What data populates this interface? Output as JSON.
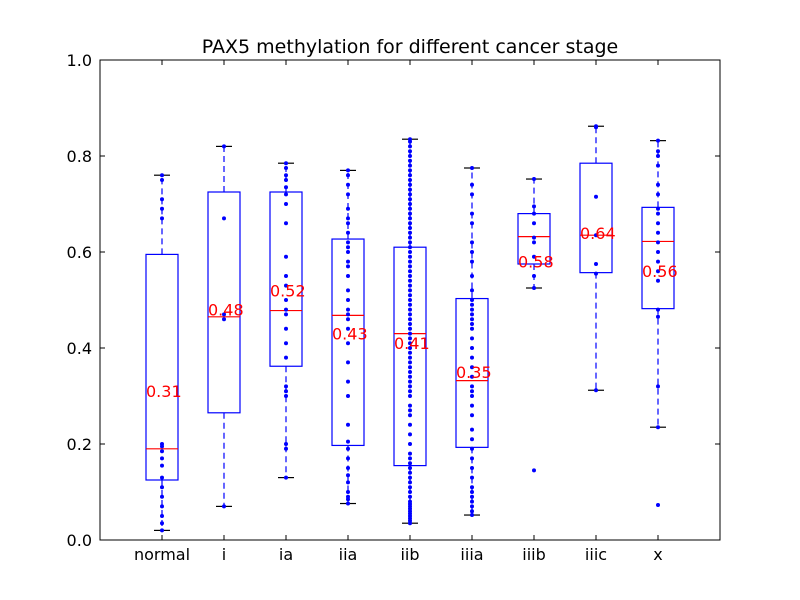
{
  "chart_data": {
    "type": "box",
    "title": "PAX5 methylation for different cancer stage",
    "xlabel": "",
    "ylabel": "",
    "ylim": [
      0.0,
      1.0
    ],
    "yticks": [
      "0.0",
      "0.2",
      "0.4",
      "0.6",
      "0.8",
      "1.0"
    ],
    "categories": [
      "normal",
      "i",
      "ia",
      "iia",
      "iib",
      "iiia",
      "iiib",
      "iiic",
      "x"
    ],
    "boxes": [
      {
        "category": "normal",
        "whisker_low": 0.02,
        "q1": 0.125,
        "median": 0.19,
        "q3": 0.595,
        "whisker_high": 0.76,
        "mean_label": "0.31",
        "points": [
          0.02,
          0.035,
          0.05,
          0.07,
          0.09,
          0.11,
          0.13,
          0.155,
          0.17,
          0.185,
          0.195,
          0.2,
          0.67,
          0.69,
          0.71,
          0.75,
          0.76
        ]
      },
      {
        "category": "i",
        "whisker_low": 0.07,
        "q1": 0.265,
        "median": 0.465,
        "q3": 0.725,
        "whisker_high": 0.82,
        "mean_label": "0.48",
        "points": [
          0.07,
          0.46,
          0.47,
          0.67,
          0.82
        ]
      },
      {
        "category": "ia",
        "whisker_low": 0.13,
        "q1": 0.362,
        "median": 0.478,
        "q3": 0.725,
        "whisker_high": 0.785,
        "mean_label": "0.52",
        "points": [
          0.13,
          0.19,
          0.2,
          0.3,
          0.31,
          0.32,
          0.38,
          0.41,
          0.44,
          0.47,
          0.48,
          0.5,
          0.53,
          0.55,
          0.59,
          0.66,
          0.7,
          0.72,
          0.735,
          0.75,
          0.76,
          0.775,
          0.785
        ]
      },
      {
        "category": "iia",
        "whisker_low": 0.076,
        "q1": 0.197,
        "median": 0.468,
        "q3": 0.627,
        "whisker_high": 0.77,
        "mean_label": "0.43",
        "points": [
          0.076,
          0.085,
          0.09,
          0.1,
          0.12,
          0.135,
          0.15,
          0.17,
          0.19,
          0.205,
          0.24,
          0.3,
          0.33,
          0.37,
          0.41,
          0.44,
          0.46,
          0.47,
          0.48,
          0.5,
          0.52,
          0.55,
          0.57,
          0.58,
          0.6,
          0.61,
          0.62,
          0.64,
          0.66,
          0.67,
          0.69,
          0.72,
          0.74,
          0.76,
          0.77
        ]
      },
      {
        "category": "iib",
        "whisker_low": 0.035,
        "q1": 0.155,
        "median": 0.43,
        "q3": 0.61,
        "whisker_high": 0.835,
        "mean_label": "0.41",
        "points": [
          0.035,
          0.04,
          0.045,
          0.05,
          0.055,
          0.06,
          0.065,
          0.07,
          0.075,
          0.08,
          0.09,
          0.1,
          0.11,
          0.12,
          0.13,
          0.14,
          0.15,
          0.16,
          0.17,
          0.18,
          0.2,
          0.22,
          0.24,
          0.26,
          0.27,
          0.28,
          0.3,
          0.31,
          0.32,
          0.33,
          0.34,
          0.35,
          0.36,
          0.37,
          0.38,
          0.39,
          0.4,
          0.41,
          0.42,
          0.43,
          0.44,
          0.45,
          0.46,
          0.47,
          0.48,
          0.49,
          0.5,
          0.51,
          0.52,
          0.53,
          0.54,
          0.55,
          0.56,
          0.57,
          0.58,
          0.59,
          0.6,
          0.61,
          0.62,
          0.63,
          0.64,
          0.65,
          0.66,
          0.67,
          0.68,
          0.69,
          0.7,
          0.71,
          0.72,
          0.73,
          0.74,
          0.75,
          0.76,
          0.77,
          0.78,
          0.79,
          0.8,
          0.81,
          0.82,
          0.83,
          0.835
        ]
      },
      {
        "category": "iiia",
        "whisker_low": 0.052,
        "q1": 0.193,
        "median": 0.332,
        "q3": 0.503,
        "whisker_high": 0.775,
        "mean_label": "0.35",
        "points": [
          0.052,
          0.06,
          0.07,
          0.08,
          0.09,
          0.1,
          0.11,
          0.13,
          0.15,
          0.17,
          0.19,
          0.21,
          0.23,
          0.26,
          0.28,
          0.3,
          0.31,
          0.32,
          0.34,
          0.36,
          0.38,
          0.4,
          0.42,
          0.44,
          0.45,
          0.46,
          0.47,
          0.48,
          0.49,
          0.5,
          0.52,
          0.55,
          0.58,
          0.6,
          0.62,
          0.66,
          0.68,
          0.72,
          0.74,
          0.775
        ]
      },
      {
        "category": "iiib",
        "whisker_low": 0.525,
        "q1": 0.575,
        "median": 0.632,
        "q3": 0.68,
        "whisker_high": 0.752,
        "mean_label": "0.58",
        "points": [
          0.145,
          0.525,
          0.55,
          0.59,
          0.62,
          0.63,
          0.66,
          0.68,
          0.695,
          0.752
        ]
      },
      {
        "category": "iiic",
        "whisker_low": 0.312,
        "q1": 0.557,
        "median": 0.635,
        "q3": 0.785,
        "whisker_high": 0.862,
        "mean_label": "0.64",
        "points": [
          0.312,
          0.555,
          0.575,
          0.635,
          0.715,
          0.86,
          0.862
        ]
      },
      {
        "category": "x",
        "whisker_low": 0.235,
        "q1": 0.482,
        "median": 0.622,
        "q3": 0.693,
        "whisker_high": 0.832,
        "mean_label": "0.56",
        "points": [
          0.073,
          0.235,
          0.32,
          0.465,
          0.48,
          0.54,
          0.56,
          0.58,
          0.6,
          0.62,
          0.64,
          0.66,
          0.68,
          0.69,
          0.72,
          0.74,
          0.78,
          0.8,
          0.81,
          0.832
        ]
      }
    ],
    "colors": {
      "box": "#0000ff",
      "median": "#ff0000",
      "points": "#0000ff",
      "mean_label": "#ff0000",
      "whisker_cap": "#000000"
    }
  }
}
